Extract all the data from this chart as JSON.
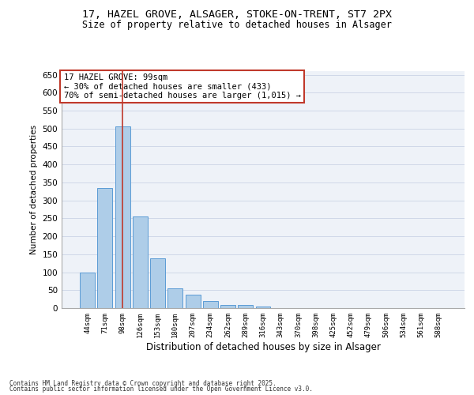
{
  "title_line1": "17, HAZEL GROVE, ALSAGER, STOKE-ON-TRENT, ST7 2PX",
  "title_line2": "Size of property relative to detached houses in Alsager",
  "xlabel": "Distribution of detached houses by size in Alsager",
  "ylabel": "Number of detached properties",
  "categories": [
    "44sqm",
    "71sqm",
    "98sqm",
    "126sqm",
    "153sqm",
    "180sqm",
    "207sqm",
    "234sqm",
    "262sqm",
    "289sqm",
    "316sqm",
    "343sqm",
    "370sqm",
    "398sqm",
    "425sqm",
    "452sqm",
    "479sqm",
    "506sqm",
    "534sqm",
    "561sqm",
    "588sqm"
  ],
  "values": [
    100,
    335,
    505,
    255,
    138,
    55,
    38,
    20,
    8,
    8,
    4,
    0,
    0,
    0,
    0,
    0,
    0,
    0,
    0,
    0,
    0
  ],
  "bar_color": "#aecde8",
  "bar_edge_color": "#5b9bd5",
  "grid_color": "#d0d8e8",
  "bg_color": "#eef2f8",
  "vline_x": 2,
  "vline_color": "#c0392b",
  "annotation_text": "17 HAZEL GROVE: 99sqm\n← 30% of detached houses are smaller (433)\n70% of semi-detached houses are larger (1,015) →",
  "annotation_box_color": "#c0392b",
  "footer_line1": "Contains HM Land Registry data © Crown copyright and database right 2025.",
  "footer_line2": "Contains public sector information licensed under the Open Government Licence v3.0.",
  "ylim": [
    0,
    660
  ],
  "yticks": [
    0,
    50,
    100,
    150,
    200,
    250,
    300,
    350,
    400,
    450,
    500,
    550,
    600,
    650
  ]
}
